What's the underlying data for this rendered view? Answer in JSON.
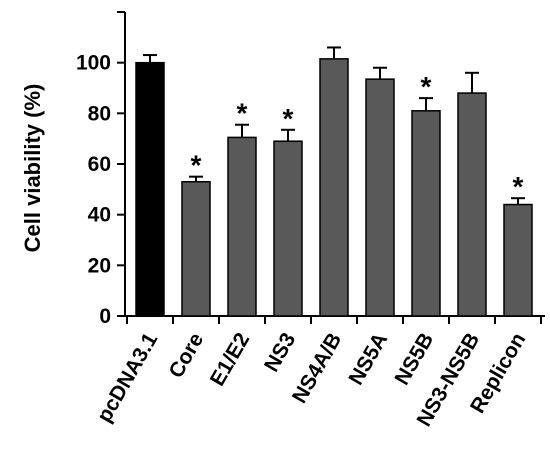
{
  "chart_data": {
    "type": "bar",
    "title": "",
    "xlabel": "",
    "ylabel": "Cell viability (%)",
    "ylim": [
      0,
      120
    ],
    "yticks": [
      0,
      20,
      40,
      60,
      80,
      100
    ],
    "grid": false,
    "legend": "none",
    "categories": [
      "pcDNA3.1",
      "Core",
      "E1/E2",
      "NS3",
      "NS4A/B",
      "NS5A",
      "NS5B",
      "NS3-NS5B",
      "Replicon"
    ],
    "values": [
      100,
      53,
      70.5,
      69,
      101.5,
      93.5,
      81,
      88,
      44
    ],
    "errors": [
      3,
      2,
      5,
      4.5,
      4.5,
      4.5,
      5,
      8,
      2.5
    ],
    "significant": [
      false,
      true,
      true,
      true,
      false,
      false,
      true,
      false,
      true
    ],
    "significance_marker": "*",
    "colors": [
      "#000000",
      "#595959",
      "#595959",
      "#595959",
      "#595959",
      "#595959",
      "#595959",
      "#595959",
      "#595959"
    ]
  }
}
